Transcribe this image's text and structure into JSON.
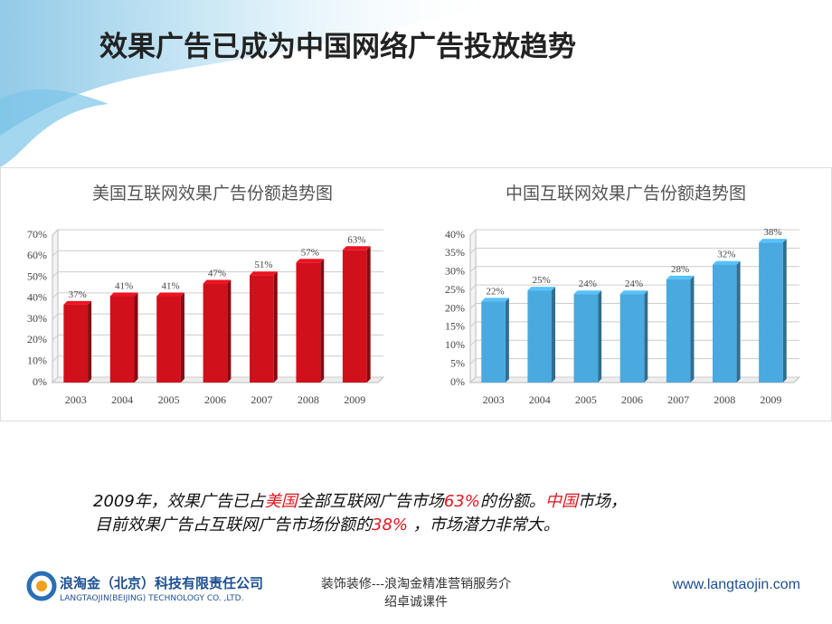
{
  "slide": {
    "title": "效果广告已成为中国网络广告投放趋势",
    "summary": [
      [
        {
          "text": "2009年，效果广告已占",
          "highlight": false
        },
        {
          "text": "美国",
          "highlight": true
        },
        {
          "text": "全部互联网广告市场",
          "highlight": false
        },
        {
          "text": "63%",
          "highlight": true
        },
        {
          "text": "的份额。",
          "highlight": false
        },
        {
          "text": "中国",
          "highlight": true
        },
        {
          "text": "市场，",
          "highlight": false
        }
      ],
      [
        {
          "text": "目前效果广告占互联网广告市场份额的",
          "highlight": false
        },
        {
          "text": "38%",
          "highlight": true
        },
        {
          "text": " ，市场潜力非常大。",
          "highlight": false
        }
      ]
    ],
    "company_cn": "浪淘金（北京）科技有限责任公司",
    "company_en": "LANGTAOJIN(BEIJING) TECHNOLOGY CO. ,LTD.",
    "footer_lines": [
      "装饰装修---浪淘金精准营销服务介",
      "绍卓诚课件"
    ],
    "url": "www.langtaojin.com"
  },
  "chart_data": [
    {
      "type": "bar",
      "title": "美国互联网效果广告份额趋势图",
      "categories": [
        "2003",
        "2004",
        "2005",
        "2006",
        "2007",
        "2008",
        "2009"
      ],
      "values": [
        37,
        41,
        41,
        47,
        51,
        57,
        63
      ],
      "value_labels": [
        "37%",
        "41%",
        "41%",
        "47%",
        "51%",
        "57%",
        "63%"
      ],
      "color": "#d0101b",
      "ylim": [
        0,
        70
      ],
      "yticks": [
        {
          "value": 0,
          "label": "0%"
        },
        {
          "value": 10,
          "label": "10%"
        },
        {
          "value": 20,
          "label": "20%"
        },
        {
          "value": 30,
          "label": "30%"
        },
        {
          "value": 40,
          "label": "40%"
        },
        {
          "value": 50,
          "label": "50%"
        },
        {
          "value": 60,
          "label": "60%"
        },
        {
          "value": 70,
          "label": "70%"
        }
      ],
      "grid": true
    },
    {
      "type": "bar",
      "title": "中国互联网效果广告份额趋势图",
      "categories": [
        "2003",
        "2004",
        "2005",
        "2006",
        "2007",
        "2008",
        "2009"
      ],
      "values": [
        22,
        25,
        24,
        24,
        28,
        32,
        38
      ],
      "value_labels": [
        "22%",
        "25%",
        "24%",
        "24%",
        "28%",
        "32%",
        "38%"
      ],
      "color": "#4aa9de",
      "ylim": [
        0,
        40
      ],
      "yticks": [
        {
          "value": 0,
          "label": "0%"
        },
        {
          "value": 5,
          "label": "5%"
        },
        {
          "value": 10,
          "label": "10%"
        },
        {
          "value": 15,
          "label": "15%"
        },
        {
          "value": 20,
          "label": "20%"
        },
        {
          "value": 25,
          "label": "25%"
        },
        {
          "value": 30,
          "label": "30%"
        },
        {
          "value": 35,
          "label": "35%"
        },
        {
          "value": 40,
          "label": "40%"
        }
      ],
      "grid": true
    }
  ]
}
